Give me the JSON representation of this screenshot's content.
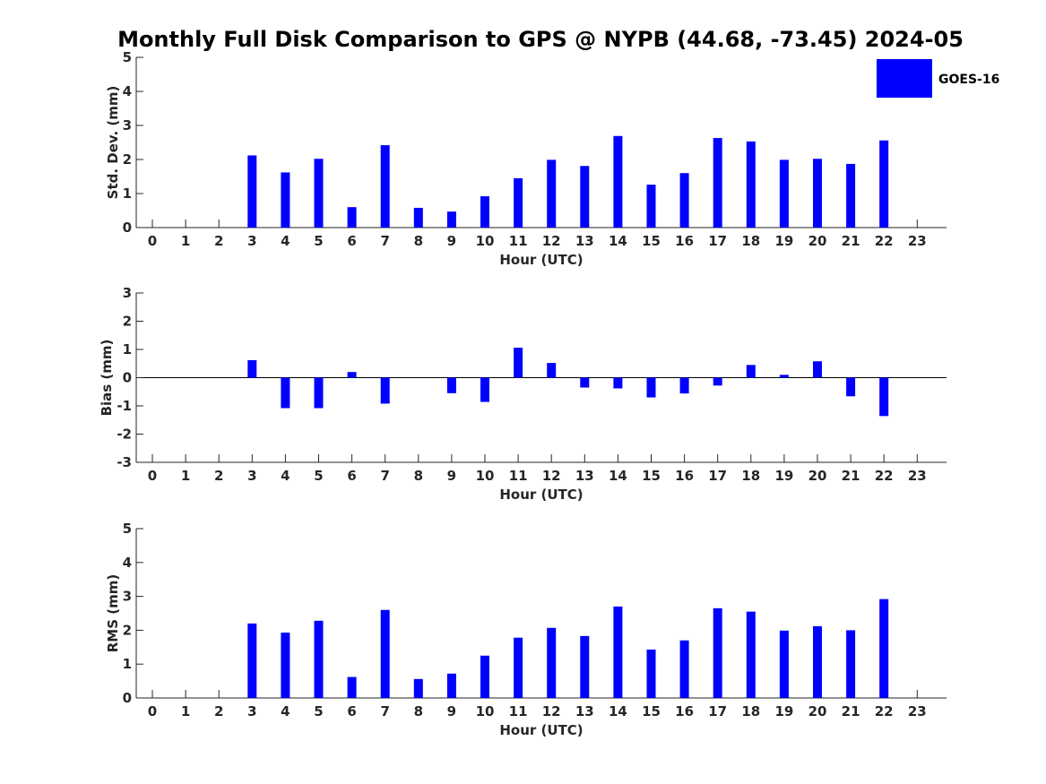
{
  "title": "Monthly Full Disk Comparison to GPS @ NYPB (44.68, -73.45) 2024-05",
  "colors": {
    "bar": "#0000ff",
    "axis": "#262626",
    "title": "#000000"
  },
  "legend": {
    "label": "GOES-16",
    "placement": "top-right"
  },
  "chart_data": [
    {
      "type": "bar",
      "series_name": "GOES-16",
      "x": [
        0,
        1,
        2,
        3,
        4,
        5,
        6,
        7,
        8,
        9,
        10,
        11,
        12,
        13,
        14,
        15,
        16,
        17,
        18,
        19,
        20,
        21,
        22,
        23
      ],
      "values": [
        null,
        null,
        null,
        2.12,
        1.62,
        2.02,
        0.6,
        2.42,
        0.58,
        0.47,
        0.92,
        1.45,
        1.99,
        1.81,
        2.69,
        1.26,
        1.6,
        2.63,
        2.53,
        1.99,
        2.02,
        1.87,
        2.56,
        null
      ],
      "xlabel": "Hour (UTC)",
      "ylabel": "Std. Dev. (mm)",
      "ylim": [
        0,
        5
      ],
      "yticks": [
        "0",
        "1",
        "2",
        "3",
        "4",
        "5"
      ],
      "xtick_labels": [
        "0",
        "1",
        "2",
        "3",
        "4",
        "5",
        "6",
        "7",
        "8",
        "9",
        "10",
        "11",
        "12",
        "13",
        "14",
        "15",
        "16",
        "17",
        "18",
        "19",
        "20",
        "21",
        "22",
        "23"
      ]
    },
    {
      "type": "bar",
      "series_name": "GOES-16",
      "x": [
        0,
        1,
        2,
        3,
        4,
        5,
        6,
        7,
        8,
        9,
        10,
        11,
        12,
        13,
        14,
        15,
        16,
        17,
        18,
        19,
        20,
        21,
        22,
        23
      ],
      "values": [
        null,
        null,
        null,
        0.62,
        -1.08,
        -1.08,
        0.2,
        -0.92,
        null,
        -0.55,
        -0.86,
        1.06,
        0.52,
        -0.35,
        -0.38,
        -0.7,
        -0.56,
        -0.28,
        0.45,
        0.1,
        0.58,
        -0.66,
        -1.36,
        null
      ],
      "xlabel": "Hour (UTC)",
      "ylabel": "Bias (mm)",
      "ylim": [
        -3,
        3
      ],
      "yticks": [
        "-3",
        "-2",
        "-1",
        "0",
        "1",
        "2",
        "3"
      ],
      "xtick_labels": [
        "0",
        "1",
        "2",
        "3",
        "4",
        "5",
        "6",
        "7",
        "8",
        "9",
        "10",
        "11",
        "12",
        "13",
        "14",
        "15",
        "16",
        "17",
        "18",
        "19",
        "20",
        "21",
        "22",
        "23"
      ]
    },
    {
      "type": "bar",
      "series_name": "GOES-16",
      "x": [
        0,
        1,
        2,
        3,
        4,
        5,
        6,
        7,
        8,
        9,
        10,
        11,
        12,
        13,
        14,
        15,
        16,
        17,
        18,
        19,
        20,
        21,
        22,
        23
      ],
      "values": [
        null,
        null,
        null,
        2.2,
        1.93,
        2.28,
        0.62,
        2.6,
        0.56,
        0.72,
        1.25,
        1.78,
        2.07,
        1.83,
        2.7,
        1.43,
        1.7,
        2.65,
        2.55,
        1.99,
        2.12,
        2.0,
        2.92,
        null
      ],
      "xlabel": "Hour (UTC)",
      "ylabel": "RMS (mm)",
      "ylim": [
        0,
        5
      ],
      "yticks": [
        "0",
        "1",
        "2",
        "3",
        "4",
        "5"
      ],
      "xtick_labels": [
        "0",
        "1",
        "2",
        "3",
        "4",
        "5",
        "6",
        "7",
        "8",
        "9",
        "10",
        "11",
        "12",
        "13",
        "14",
        "15",
        "16",
        "17",
        "18",
        "19",
        "20",
        "21",
        "22",
        "23"
      ]
    }
  ]
}
